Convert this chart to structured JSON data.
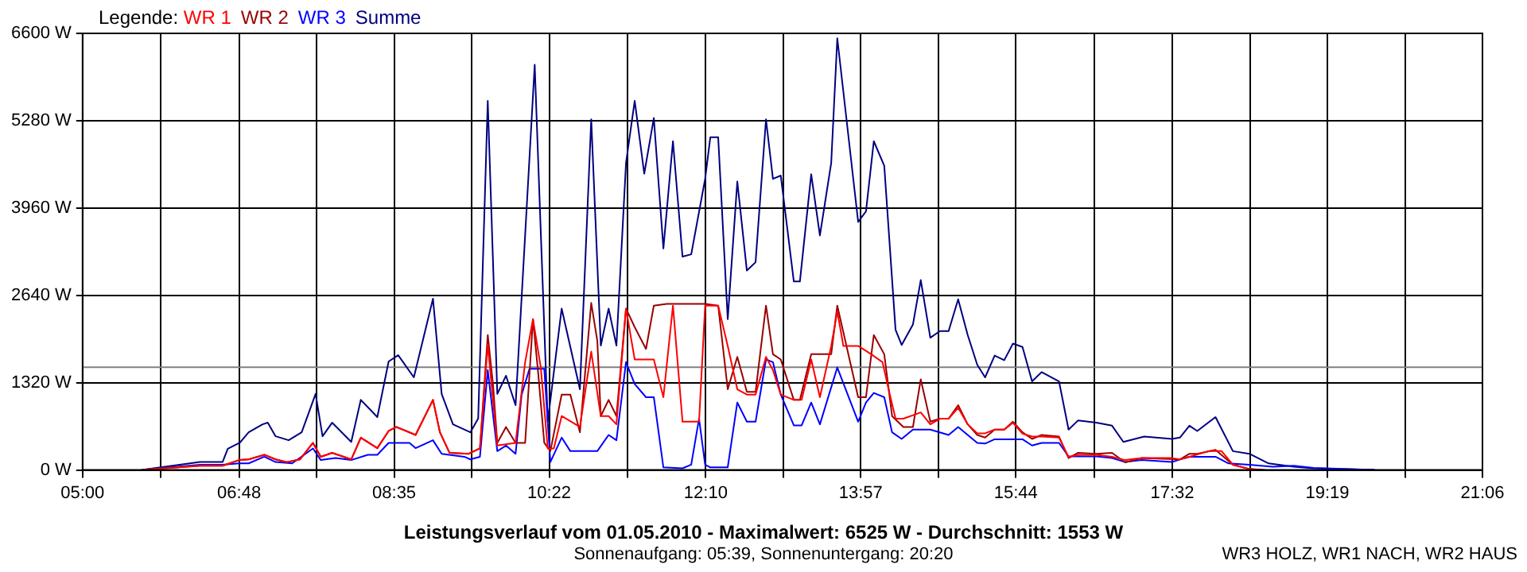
{
  "chart_data": {
    "type": "line",
    "title": "Leistungsverlauf vom 01.05.2010 - Maximalwert: 6525 W - Durchschnitt: 1553 W",
    "subtitle": "Sonnenaufgang: 05:39, Sonnenuntergang: 20:20",
    "annotations": [
      "WR3 HOLZ, WR1 NACH, WR2 HAUS"
    ],
    "legend_title": "Legende:",
    "legend": "top left",
    "grid": true,
    "xlim": [
      5,
      21.1
    ],
    "xticks": [
      {
        "value": 5,
        "label": "05:00"
      },
      {
        "value": 5.9,
        "label": null
      },
      {
        "value": 6.8,
        "label": "06:48"
      },
      {
        "value": 7.6917,
        "label": null
      },
      {
        "value": 8.5833,
        "label": "08:35"
      },
      {
        "value": 9.475,
        "label": null
      },
      {
        "value": 10.3667,
        "label": "10:22"
      },
      {
        "value": 11.2667,
        "label": null
      },
      {
        "value": 12.1667,
        "label": "12:10"
      },
      {
        "value": 13.0583,
        "label": null
      },
      {
        "value": 13.95,
        "label": "13:57"
      },
      {
        "value": 14.8417,
        "label": null
      },
      {
        "value": 15.7333,
        "label": "15:44"
      },
      {
        "value": 16.6333,
        "label": null
      },
      {
        "value": 17.5333,
        "label": "17:32"
      },
      {
        "value": 18.425,
        "label": null
      },
      {
        "value": 19.3167,
        "label": "19:19"
      },
      {
        "value": 20.2083,
        "label": null
      },
      {
        "value": 21.1,
        "label": "21:06"
      }
    ],
    "ylim": [
      0,
      6600
    ],
    "yticks": [
      {
        "value": 0,
        "label": "0 W"
      },
      {
        "value": 1320,
        "label": "1320 W"
      },
      {
        "value": 2640,
        "label": "2640 W"
      },
      {
        "value": 3960,
        "label": "3960 W"
      },
      {
        "value": 5280,
        "label": "5280 W"
      },
      {
        "value": 6600,
        "label": "6600 W"
      }
    ],
    "ref_lines": [
      {
        "axis": "y",
        "value": 1553,
        "color": "#808080"
      }
    ],
    "series": [
      {
        "name": "WR 1",
        "color": "#ff0000",
        "x": [
          5.68,
          6.35,
          6.61,
          6.8,
          6.91,
          7.09,
          7.22,
          7.35,
          7.5,
          7.65,
          7.74,
          7.87,
          8.09,
          8.2,
          8.39,
          8.52,
          8.61,
          8.83,
          9.03,
          9.11,
          9.22,
          9.44,
          9.57,
          9.66,
          9.77,
          9.98,
          10.09,
          10.18,
          10.27,
          10.35,
          10.42,
          10.51,
          10.72,
          10.85,
          10.96,
          11.05,
          11.14,
          11.25,
          11.35,
          11.57,
          11.68,
          11.79,
          11.9,
          12.09,
          12.16,
          12.31,
          12.42,
          12.53,
          12.64,
          12.74,
          12.86,
          12.94,
          13.03,
          13.18,
          13.27,
          13.38,
          13.48,
          13.61,
          13.68,
          13.75,
          13.92,
          14.07,
          14.2,
          14.27,
          14.35,
          14.44,
          14.64,
          14.75,
          14.86,
          14.96,
          15.07,
          15.18,
          15.29,
          15.38,
          15.49,
          15.6,
          15.7,
          15.81,
          15.92,
          16.03,
          16.23,
          16.34,
          16.45,
          16.66,
          16.84,
          16.99,
          17.18,
          17.53,
          17.62,
          17.73,
          17.95,
          18.1,
          18.23,
          18.42,
          18.51
        ],
        "values": [
          0,
          65,
          65,
          150,
          160,
          230,
          160,
          120,
          160,
          410,
          200,
          260,
          160,
          490,
          330,
          590,
          650,
          530,
          1060,
          570,
          260,
          245,
          330,
          1900,
          370,
          410,
          1630,
          2280,
          1550,
          325,
          325,
          815,
          650,
          1790,
          815,
          815,
          690,
          2440,
          1670,
          1670,
          1100,
          2485,
          730,
          730,
          2485,
          2485,
          1875,
          1220,
          1140,
          1140,
          1710,
          1510,
          1140,
          1060,
          1060,
          1670,
          1100,
          1875,
          2400,
          1875,
          1875,
          1750,
          1630,
          1220,
          775,
          775,
          870,
          690,
          775,
          775,
          940,
          690,
          555,
          555,
          610,
          610,
          715,
          550,
          505,
          505,
          490,
          195,
          230,
          230,
          200,
          150,
          180,
          180,
          160,
          200,
          285,
          285,
          80,
          15,
          0
        ]
      },
      {
        "name": "WR 2",
        "color": "#990000",
        "x": [
          5.68,
          6.35,
          6.61,
          6.8,
          6.91,
          7.09,
          7.22,
          7.35,
          7.5,
          7.65,
          7.74,
          7.87,
          8.09,
          8.2,
          8.39,
          8.52,
          8.61,
          8.83,
          9.03,
          9.11,
          9.22,
          9.44,
          9.57,
          9.66,
          9.72,
          9.77,
          9.87,
          9.98,
          10.09,
          10.18,
          10.24,
          10.31,
          10.38,
          10.51,
          10.61,
          10.72,
          10.85,
          10.92,
          10.96,
          11.05,
          11.14,
          11.25,
          11.35,
          11.48,
          11.57,
          11.72,
          12.16,
          12.31,
          12.42,
          12.53,
          12.64,
          12.74,
          12.86,
          12.94,
          13.03,
          13.18,
          13.25,
          13.38,
          13.61,
          13.68,
          13.92,
          14.01,
          14.1,
          14.22,
          14.31,
          14.44,
          14.55,
          14.64,
          14.75,
          14.86,
          14.96,
          15.07,
          15.18,
          15.29,
          15.38,
          15.49,
          15.6,
          15.7,
          15.81,
          15.92,
          16.03,
          16.23,
          16.34,
          16.45,
          16.66,
          16.84,
          16.99,
          17.18,
          17.62,
          17.73,
          17.82,
          18.03,
          18.23,
          18.42,
          18.6
        ],
        "values": [
          0,
          65,
          65,
          150,
          160,
          230,
          160,
          120,
          160,
          410,
          200,
          260,
          160,
          490,
          330,
          590,
          650,
          530,
          1060,
          570,
          260,
          245,
          325,
          2040,
          1300,
          410,
          650,
          410,
          410,
          2280,
          1465,
          410,
          285,
          1140,
          1140,
          570,
          2525,
          1955,
          815,
          1060,
          815,
          2440,
          2160,
          1830,
          2485,
          2510,
          2510,
          2485,
          1220,
          1710,
          1180,
          1180,
          2485,
          1750,
          1670,
          1060,
          1060,
          1750,
          1750,
          2485,
          1100,
          1100,
          2040,
          1750,
          815,
          650,
          650,
          1370,
          730,
          775,
          775,
          980,
          690,
          530,
          490,
          610,
          610,
          730,
          570,
          470,
          530,
          505,
          180,
          260,
          245,
          260,
          115,
          180,
          160,
          245,
          245,
          305,
          80,
          15,
          0
        ]
      },
      {
        "name": "WR 3",
        "color": "#0000ff",
        "x": [
          5.68,
          6.35,
          6.61,
          6.8,
          6.91,
          7.09,
          7.22,
          7.41,
          7.65,
          7.74,
          7.91,
          8.09,
          8.28,
          8.39,
          8.52,
          8.76,
          8.83,
          9.03,
          9.13,
          9.39,
          9.46,
          9.57,
          9.66,
          9.77,
          9.87,
          9.98,
          10.05,
          10.14,
          10.31,
          10.38,
          10.51,
          10.61,
          10.92,
          11.05,
          11.14,
          11.25,
          11.35,
          11.48,
          11.57,
          11.68,
          11.9,
          12.0,
          12.09,
          12.16,
          12.22,
          12.42,
          12.53,
          12.64,
          12.74,
          12.86,
          12.94,
          13.03,
          13.18,
          13.27,
          13.38,
          13.48,
          13.68,
          13.92,
          14.01,
          14.1,
          14.22,
          14.31,
          14.42,
          14.55,
          14.75,
          14.96,
          15.07,
          15.18,
          15.29,
          15.38,
          15.49,
          15.81,
          15.92,
          16.03,
          16.23,
          16.34,
          16.66,
          16.84,
          16.99,
          17.18,
          17.53,
          17.62,
          17.73,
          18.03,
          18.18,
          18.42,
          18.69,
          18.93,
          19.16,
          19.86
        ],
        "values": [
          0,
          80,
          80,
          100,
          100,
          200,
          120,
          100,
          325,
          150,
          180,
          150,
          230,
          230,
          410,
          410,
          330,
          450,
          245,
          200,
          160,
          200,
          1510,
          285,
          370,
          245,
          1140,
          1530,
          1530,
          120,
          490,
          285,
          285,
          530,
          450,
          1630,
          1300,
          1100,
          1100,
          40,
          25,
          80,
          775,
          80,
          40,
          40,
          1020,
          730,
          730,
          1670,
          1630,
          1140,
          675,
          675,
          1020,
          690,
          1550,
          730,
          1020,
          1165,
          1100,
          570,
          470,
          610,
          610,
          530,
          650,
          530,
          410,
          400,
          465,
          465,
          370,
          410,
          410,
          205,
          205,
          180,
          120,
          150,
          120,
          160,
          200,
          200,
          100,
          80,
          50,
          65,
          30,
          0
        ]
      },
      {
        "name": "Summe",
        "color": "#000080",
        "x": [
          5.68,
          6.35,
          6.61,
          6.67,
          6.81,
          6.91,
          7.07,
          7.13,
          7.22,
          7.37,
          7.52,
          7.68,
          7.76,
          7.87,
          8.09,
          8.2,
          8.39,
          8.52,
          8.63,
          8.81,
          9.03,
          9.13,
          9.26,
          9.46,
          9.55,
          9.66,
          9.77,
          9.87,
          9.98,
          10.2,
          10.27,
          10.35,
          10.51,
          10.72,
          10.85,
          10.96,
          11.05,
          11.14,
          11.25,
          11.35,
          11.46,
          11.57,
          11.68,
          11.79,
          11.9,
          12.0,
          12.16,
          12.22,
          12.31,
          12.42,
          12.53,
          12.64,
          12.74,
          12.86,
          12.94,
          13.03,
          13.18,
          13.25,
          13.38,
          13.48,
          13.61,
          13.68,
          13.92,
          14.01,
          14.1,
          14.22,
          14.35,
          14.42,
          14.55,
          14.64,
          14.75,
          14.86,
          14.96,
          15.07,
          15.18,
          15.29,
          15.38,
          15.49,
          15.6,
          15.7,
          15.81,
          15.92,
          16.03,
          16.23,
          16.34,
          16.45,
          16.66,
          16.84,
          16.97,
          17.21,
          17.53,
          17.62,
          17.73,
          17.82,
          18.03,
          18.23,
          18.42,
          18.64,
          18.93,
          19.16,
          19.86
        ],
        "values": [
          0,
          120,
          120,
          320,
          415,
          570,
          690,
          715,
          510,
          450,
          570,
          1150,
          510,
          715,
          425,
          1060,
          800,
          1640,
          1735,
          1400,
          2590,
          1150,
          690,
          570,
          780,
          5580,
          1150,
          1425,
          980,
          6125,
          3590,
          730,
          2440,
          1220,
          5300,
          1880,
          2440,
          1880,
          4640,
          5580,
          4480,
          5320,
          3350,
          4970,
          3225,
          3260,
          4400,
          5030,
          5030,
          2280,
          4360,
          3015,
          3140,
          5300,
          4400,
          4450,
          2850,
          2850,
          4470,
          3545,
          4640,
          6525,
          3750,
          3910,
          4970,
          4600,
          2120,
          1890,
          2200,
          2870,
          2000,
          2100,
          2100,
          2580,
          2040,
          1590,
          1400,
          1730,
          1660,
          1910,
          1860,
          1340,
          1480,
          1340,
          610,
          750,
          715,
          670,
          425,
          505,
          470,
          490,
          670,
          590,
          800,
          285,
          245,
          100,
          50,
          25,
          0
        ]
      }
    ]
  }
}
